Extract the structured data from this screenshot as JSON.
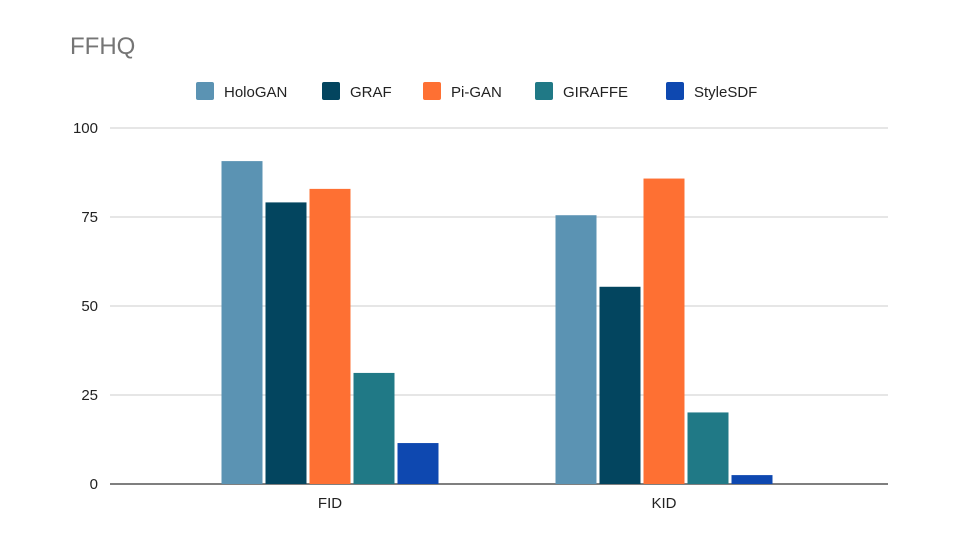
{
  "chart_data": {
    "type": "bar",
    "title": "FFHQ",
    "categories": [
      "FID",
      "KID"
    ],
    "series": [
      {
        "name": "HoloGAN",
        "color": "#5b93b3",
        "values": [
          90.7,
          75.5
        ]
      },
      {
        "name": "GRAF",
        "color": "#03455f",
        "values": [
          79.1,
          55.4
        ]
      },
      {
        "name": "Pi-GAN",
        "color": "#fe7033",
        "values": [
          82.9,
          85.8
        ]
      },
      {
        "name": "GIRAFFE",
        "color": "#207986",
        "values": [
          31.2,
          20.1
        ]
      },
      {
        "name": "StyleSDF",
        "color": "#0e48b0",
        "values": [
          11.5,
          2.5
        ]
      }
    ],
    "yticks": [
      "0",
      "25",
      "50",
      "75",
      "100"
    ],
    "ylim": [
      0,
      100
    ],
    "grid": true,
    "legend_position": "top",
    "xlabel": "",
    "ylabel": ""
  }
}
